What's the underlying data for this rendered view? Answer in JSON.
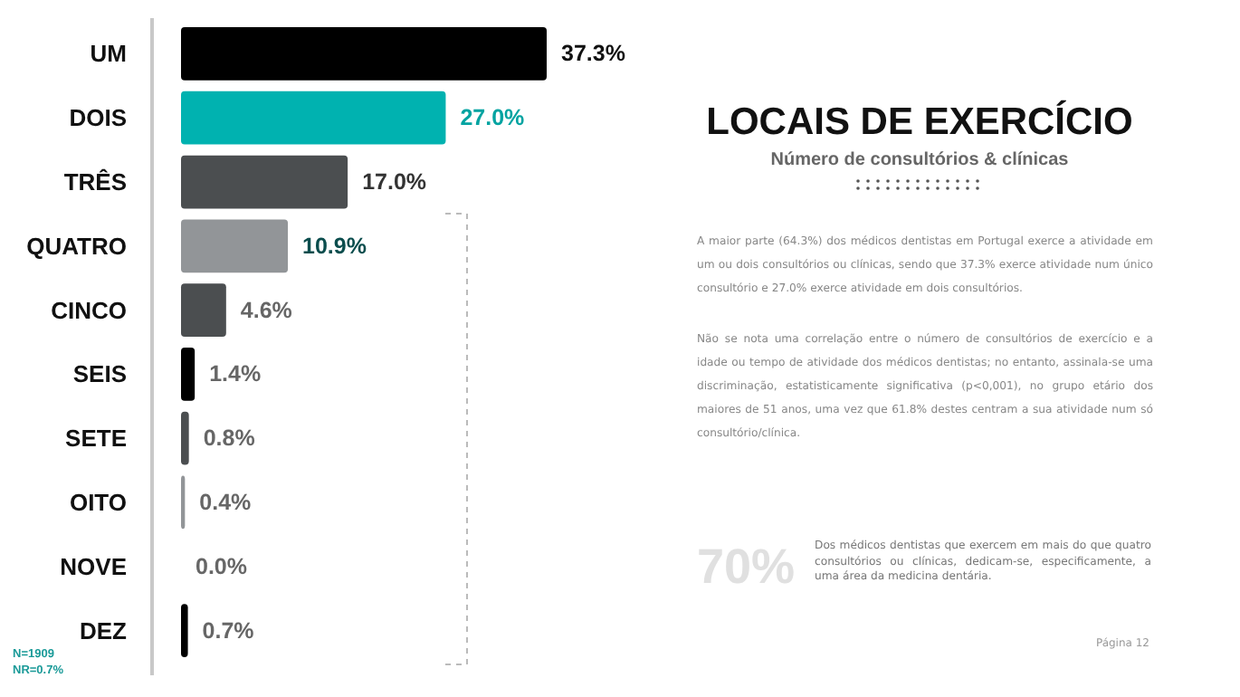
{
  "chart_data": {
    "type": "bar",
    "orientation": "horizontal",
    "title": "LOCAIS DE EXERCÍCIO",
    "subtitle": "Número de consultórios & clínicas",
    "categories": [
      "UM",
      "DOIS",
      "TRÊS",
      "QUATRO",
      "CINCO",
      "SEIS",
      "SETE",
      "OITO",
      "NOVE",
      "DEZ"
    ],
    "values": [
      37.3,
      27.0,
      17.0,
      10.9,
      4.6,
      1.4,
      0.8,
      0.4,
      0.0,
      0.7
    ],
    "value_labels": [
      "37.3%",
      "27.0%",
      "17.0%",
      "10.9%",
      "4.6%",
      "1.4%",
      "0.8%",
      "0.4%",
      "0.0%",
      "0.7%"
    ],
    "colors": [
      "#000000",
      "#00b2b0",
      "#4b4e50",
      "#929598",
      "#4b4e50",
      "#000000",
      "#4b4e50",
      "#929598",
      "#000000",
      "#000000"
    ],
    "annotations": [
      "A maior parte (64.3%) dos médicos dentistas em Portugal exerce a atividade em um ou dois consultórios ou clínicas, sendo que 37.3% exerce atividade num único consultório e 27.0% exerce atividade em dois consultórios.",
      "Não se nota uma correlação entre o número de consultórios de exercício e a idade ou tempo de atividade dos médicos dentistas; no entanto, assinala-se uma discriminação, estatisticamente significativa (p<0,001), no grupo etário dos maiores de 51 anos, uma vez que 61.8% destes centram a sua atividade num só consultório/clínica.",
      "70%",
      "Dos médicos dentistas que exercem em mais do que quatro consultórios ou clínicas, dedicam-se, especificamente, a uma área da medicina dentária.",
      "N=1909",
      "NR=0.7%",
      "Página 12"
    ]
  }
}
